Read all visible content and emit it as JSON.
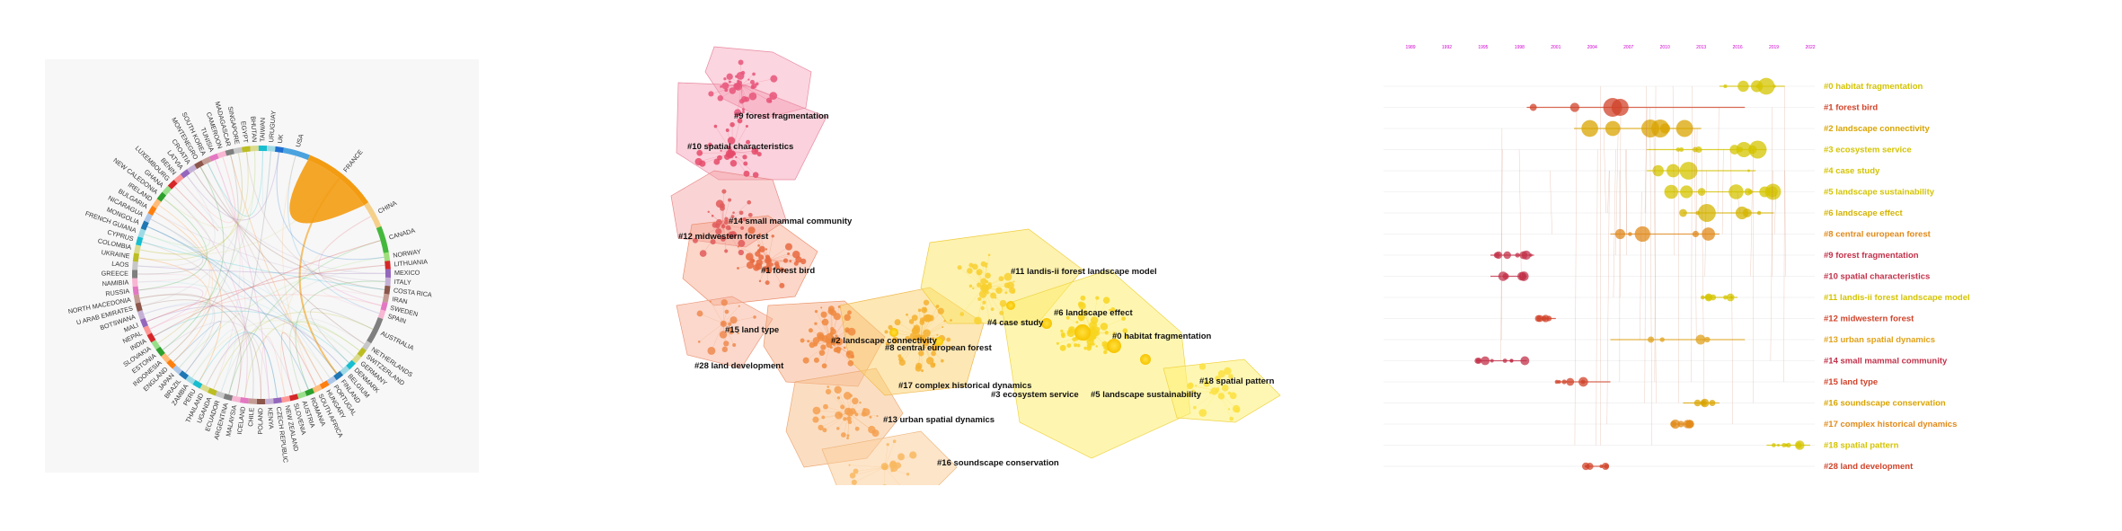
{
  "chord": {
    "countries": [
      {
        "name": "USA",
        "color": "#4aa3df"
      },
      {
        "name": "FRANCE",
        "color": "#f39c12"
      },
      {
        "name": "CHINA",
        "color": "#f5d08a"
      },
      {
        "name": "CANADA",
        "color": "#44b83c"
      },
      {
        "name": "NORWAY",
        "color": "#9fde7a"
      },
      {
        "name": "LITHUANIA",
        "color": "#d62728"
      },
      {
        "name": "MEXICO",
        "color": "#9467bd"
      },
      {
        "name": "ITALY",
        "color": "#c5b0d5"
      },
      {
        "name": "COSTA RICA",
        "color": "#8c564b"
      },
      {
        "name": "IRAN",
        "color": "#c49c94"
      },
      {
        "name": "SWEDEN",
        "color": "#e377c2"
      },
      {
        "name": "SPAIN",
        "color": "#f7b6d2"
      },
      {
        "name": "AUSTRALIA",
        "color": "#7f7f7f"
      },
      {
        "name": "NETHERLANDS",
        "color": "#c7c7c7"
      },
      {
        "name": "SWITZERLAND",
        "color": "#bcbd22"
      },
      {
        "name": "GERMANY",
        "color": "#dbdb8d"
      },
      {
        "name": "DENMARK",
        "color": "#17becf"
      },
      {
        "name": "BELGIUM",
        "color": "#9edae5"
      },
      {
        "name": "FINLAND",
        "color": "#1f77b4"
      },
      {
        "name": "PORTUGAL",
        "color": "#aec7e8"
      },
      {
        "name": "HUNGARY",
        "color": "#ff7f0e"
      },
      {
        "name": "SOUTH AFRICA",
        "color": "#ffbb78"
      },
      {
        "name": "ROMANIA",
        "color": "#2ca02c"
      },
      {
        "name": "AUSTRIA",
        "color": "#98df8a"
      },
      {
        "name": "SLOVENIA",
        "color": "#d62728"
      },
      {
        "name": "NEW ZEALAND",
        "color": "#ff9896"
      },
      {
        "name": "CZECH REPUBLIC",
        "color": "#9467bd"
      },
      {
        "name": "KENYA",
        "color": "#c5b0d5"
      },
      {
        "name": "POLAND",
        "color": "#8c564b"
      },
      {
        "name": "CHILE",
        "color": "#c49c94"
      },
      {
        "name": "ICELAND",
        "color": "#e377c2"
      },
      {
        "name": "MALAYSIA",
        "color": "#f7b6d2"
      },
      {
        "name": "ARGENTINA",
        "color": "#7f7f7f"
      },
      {
        "name": "ECUADOR",
        "color": "#c7c7c7"
      },
      {
        "name": "UGANDA",
        "color": "#bcbd22"
      },
      {
        "name": "THAILAND",
        "color": "#dbdb8d"
      },
      {
        "name": "PERU",
        "color": "#17becf"
      },
      {
        "name": "ZAMBIA",
        "color": "#9edae5"
      },
      {
        "name": "BRAZIL",
        "color": "#1f77b4"
      },
      {
        "name": "JAPAN",
        "color": "#aec7e8"
      },
      {
        "name": "ENGLAND",
        "color": "#ff7f0e"
      },
      {
        "name": "INDONESIA",
        "color": "#ffbb78"
      },
      {
        "name": "ESTONIA",
        "color": "#2ca02c"
      },
      {
        "name": "SLOVAKIA",
        "color": "#98df8a"
      },
      {
        "name": "INDIA",
        "color": "#d62728"
      },
      {
        "name": "NEPAL",
        "color": "#ff9896"
      },
      {
        "name": "MALI",
        "color": "#9467bd"
      },
      {
        "name": "BOTSWANA",
        "color": "#c5b0d5"
      },
      {
        "name": "U ARAB EMIRATES",
        "color": "#8c564b"
      },
      {
        "name": "NORTH MACEDONIA",
        "color": "#c49c94"
      },
      {
        "name": "RUSSIA",
        "color": "#e377c2"
      },
      {
        "name": "NAMIBIA",
        "color": "#f7b6d2"
      },
      {
        "name": "GREECE",
        "color": "#7f7f7f"
      },
      {
        "name": "LAOS",
        "color": "#c7c7c7"
      },
      {
        "name": "UKRAINE",
        "color": "#bcbd22"
      },
      {
        "name": "COLOMBIA",
        "color": "#dbdb8d"
      },
      {
        "name": "CYPRUS",
        "color": "#17becf"
      },
      {
        "name": "FRENCH GUIANA",
        "color": "#9edae5"
      },
      {
        "name": "MONGOLIA",
        "color": "#1f77b4"
      },
      {
        "name": "NICARAGUA",
        "color": "#aec7e8"
      },
      {
        "name": "BULGARIA",
        "color": "#ff7f0e"
      },
      {
        "name": "IRELAND",
        "color": "#ffbb78"
      },
      {
        "name": "NEW CALEDONIA",
        "color": "#2ca02c"
      },
      {
        "name": "GHANA",
        "color": "#98df8a"
      },
      {
        "name": "LUXEMBOURG",
        "color": "#d62728"
      },
      {
        "name": "BENIN",
        "color": "#ff9896"
      },
      {
        "name": "LATVIA",
        "color": "#9467bd"
      },
      {
        "name": "CROATIA",
        "color": "#c5b0d5"
      },
      {
        "name": "MONTENEGRO",
        "color": "#8c564b"
      },
      {
        "name": "SOUTH KOREA",
        "color": "#c49c94"
      },
      {
        "name": "TUNISIA",
        "color": "#e377c2"
      },
      {
        "name": "CAMEROON",
        "color": "#f7b6d2"
      },
      {
        "name": "MADAGASCAR",
        "color": "#7f7f7f"
      },
      {
        "name": "SINGAPORE",
        "color": "#c7c7c7"
      },
      {
        "name": "EGYPT",
        "color": "#bcbd22"
      },
      {
        "name": "BHUTAN",
        "color": "#dbdb8d"
      },
      {
        "name": "TAIWAN",
        "color": "#17becf"
      },
      {
        "name": "URUGUAY",
        "color": "#9edae5"
      },
      {
        "name": "UK",
        "color": "#1f6fd0"
      }
    ]
  },
  "clusters": {
    "labels": [
      "#0 habitat fragmentation",
      "#1 forest bird",
      "#2 landscape connectivity",
      "#3 ecosystem service",
      "#4 case study",
      "#5 landscape sustainability",
      "#6 landscape effect",
      "#8 central european forest",
      "#9 forest fragmentation",
      "#10 spatial characteristics",
      "#11 landis-ii forest landscape model",
      "#12 midwestern forest",
      "#13 urban spatial dynamics",
      "#14 small mammal community",
      "#15 land type",
      "#16 soundscape conservation",
      "#17 complex historical dynamics",
      "#18 spatial pattern",
      "#28 land development"
    ]
  },
  "timeline": {
    "years": [
      "1989",
      "1992",
      "1995",
      "1998",
      "2001",
      "2004",
      "2007",
      "2010",
      "2013",
      "2016",
      "2019",
      "2022"
    ],
    "rows": [
      {
        "label": "#0 habitat fragmentation",
        "color": "#d4c400"
      },
      {
        "label": "#1 forest bird",
        "color": "#d0432a"
      },
      {
        "label": "#2 landscape connectivity",
        "color": "#d9a400"
      },
      {
        "label": "#3 ecosystem service",
        "color": "#d4c400"
      },
      {
        "label": "#4 case study",
        "color": "#d4c400"
      },
      {
        "label": "#5 landscape sustainability",
        "color": "#d4c400"
      },
      {
        "label": "#6 landscape effect",
        "color": "#d4b400"
      },
      {
        "label": "#8 central european forest",
        "color": "#e08a1a"
      },
      {
        "label": "#9 forest fragmentation",
        "color": "#c2314a"
      },
      {
        "label": "#10 spatial characteristics",
        "color": "#c2314a"
      },
      {
        "label": "#11 landis-ii forest landscape model",
        "color": "#d4c400"
      },
      {
        "label": "#12 midwestern forest",
        "color": "#d0432a"
      },
      {
        "label": "#13 urban spatial dynamics",
        "color": "#e0a21a"
      },
      {
        "label": "#14 small mammal community",
        "color": "#c2314a"
      },
      {
        "label": "#15 land type",
        "color": "#d0432a"
      },
      {
        "label": "#16 soundscape conservation",
        "color": "#d9a400"
      },
      {
        "label": "#17 complex historical dynamics",
        "color": "#e08a1a"
      },
      {
        "label": "#18 spatial pattern",
        "color": "#d4c400"
      },
      {
        "label": "#28 land development",
        "color": "#d0432a"
      }
    ]
  }
}
